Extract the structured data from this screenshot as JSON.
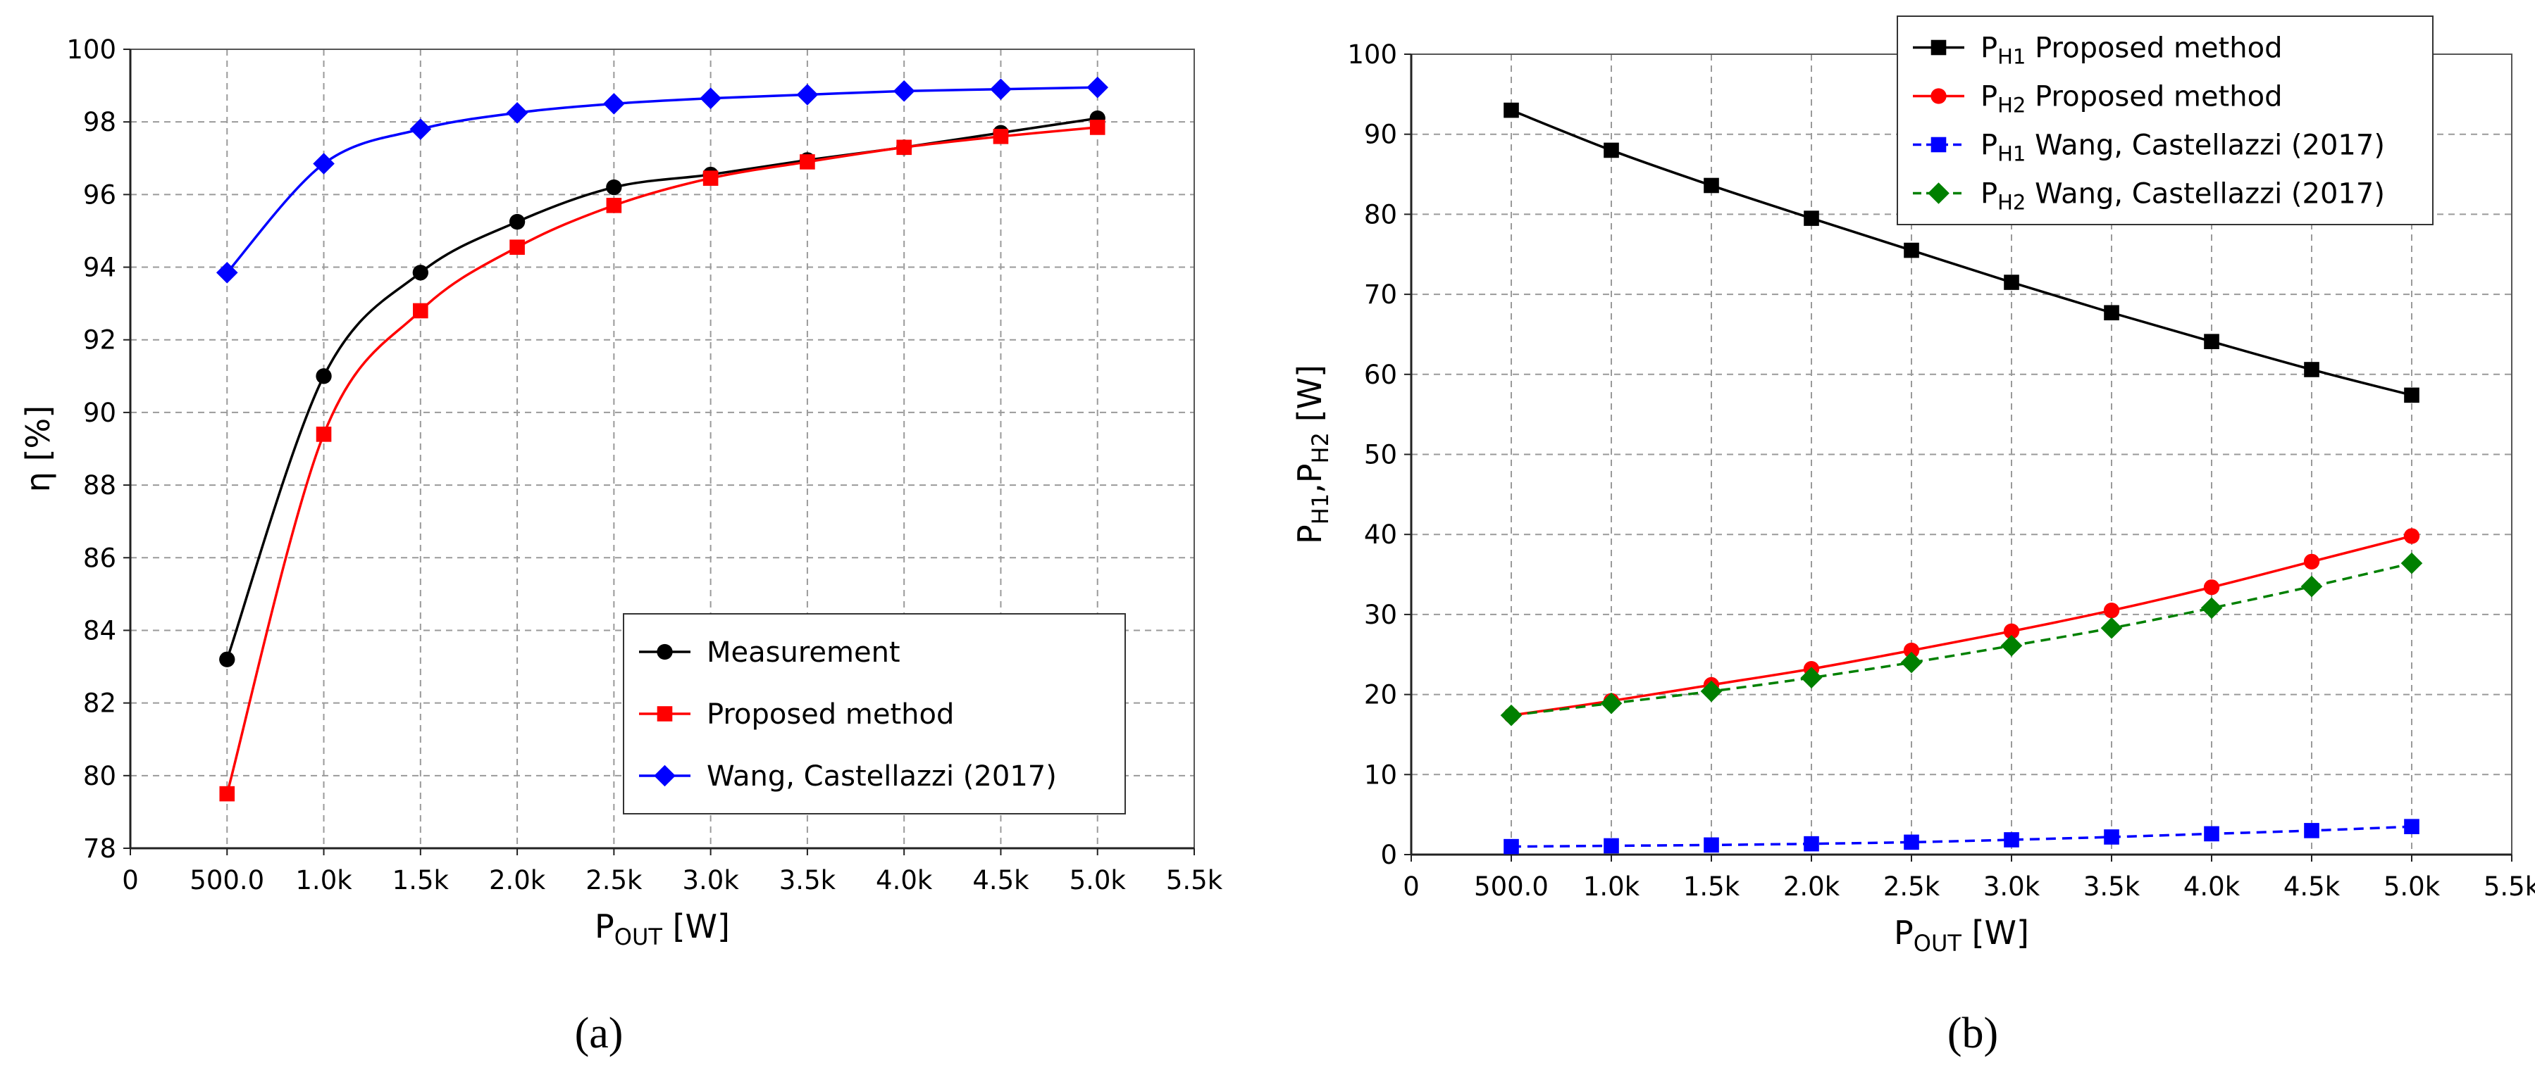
{
  "chart_data": [
    {
      "type": "line",
      "caption": "(a)",
      "ylabel": "η [%]",
      "xlabel": {
        "main": "P",
        "sub": "OUT",
        "unit": " [W]"
      },
      "xlim": [
        0,
        5500
      ],
      "ylim": [
        78,
        100
      ],
      "xticks": [
        0,
        500,
        1000,
        1500,
        2000,
        2500,
        3000,
        3500,
        4000,
        4500,
        5000,
        5500
      ],
      "xtick_labels": [
        "0",
        "500.0",
        "1.0k",
        "1.5k",
        "2.0k",
        "2.5k",
        "3.0k",
        "3.5k",
        "4.0k",
        "4.5k",
        "5.0k",
        "5.5k"
      ],
      "yticks": [
        78,
        80,
        82,
        84,
        86,
        88,
        90,
        92,
        94,
        96,
        98,
        100
      ],
      "ytick_labels": [
        "78",
        "80",
        "82",
        "84",
        "86",
        "88",
        "90",
        "92",
        "94",
        "96",
        "98",
        "100"
      ],
      "grid": true,
      "legend_position": "bottom-right",
      "series": [
        {
          "name": "Measurement",
          "color": "#000000",
          "marker": "circle",
          "dashed": false,
          "x": [
            500,
            1000,
            1500,
            2000,
            2500,
            3000,
            3500,
            4000,
            4500,
            5000
          ],
          "y": [
            83.2,
            91.0,
            93.85,
            95.25,
            96.2,
            96.55,
            96.95,
            97.3,
            97.7,
            98.1
          ]
        },
        {
          "name": "Proposed method",
          "color": "#ff0000",
          "marker": "square",
          "dashed": false,
          "x": [
            500,
            1000,
            1500,
            2000,
            2500,
            3000,
            3500,
            4000,
            4500,
            5000
          ],
          "y": [
            79.5,
            89.4,
            92.8,
            94.55,
            95.7,
            96.45,
            96.9,
            97.3,
            97.6,
            97.85
          ]
        },
        {
          "name": "Wang, Castellazzi (2017)",
          "color": "#0000ff",
          "marker": "diamond",
          "dashed": false,
          "x": [
            500,
            1000,
            1500,
            2000,
            2500,
            3000,
            3500,
            4000,
            4500,
            5000
          ],
          "y": [
            93.85,
            96.85,
            97.8,
            98.25,
            98.5,
            98.65,
            98.75,
            98.85,
            98.9,
            98.95
          ]
        }
      ]
    },
    {
      "type": "line",
      "caption": "(b)",
      "ylabel": {
        "p1": "P",
        "s1": "H1",
        "sep": ",",
        "p2": "P",
        "s2": "H2",
        "unit": " [W]"
      },
      "xlabel": {
        "main": "P",
        "sub": "OUT",
        "unit": " [W]"
      },
      "xlim": [
        0,
        5500
      ],
      "ylim": [
        0,
        100
      ],
      "xticks": [
        0,
        500,
        1000,
        1500,
        2000,
        2500,
        3000,
        3500,
        4000,
        4500,
        5000,
        5500
      ],
      "xtick_labels": [
        "0",
        "500.0",
        "1.0k",
        "1.5k",
        "2.0k",
        "2.5k",
        "3.0k",
        "3.5k",
        "4.0k",
        "4.5k",
        "5.0k",
        "5.5k"
      ],
      "yticks": [
        0,
        10,
        20,
        30,
        40,
        50,
        60,
        70,
        80,
        90,
        100
      ],
      "ytick_labels": [
        "0",
        "10",
        "20",
        "30",
        "40",
        "50",
        "60",
        "70",
        "80",
        "90",
        "100"
      ],
      "grid": true,
      "legend_position": "top-right",
      "series": [
        {
          "name": "Proposed method",
          "prefix": "P",
          "sub": "H1",
          "color": "#000000",
          "marker": "square",
          "dashed": false,
          "x": [
            500,
            1000,
            1500,
            2000,
            2500,
            3000,
            3500,
            4000,
            4500,
            5000
          ],
          "y": [
            93.0,
            88.0,
            83.6,
            79.5,
            75.5,
            71.5,
            67.7,
            64.1,
            60.6,
            57.4
          ]
        },
        {
          "name": "Proposed method",
          "prefix": "P",
          "sub": "H2",
          "color": "#ff0000",
          "marker": "circle",
          "dashed": false,
          "x": [
            500,
            1000,
            1500,
            2000,
            2500,
            3000,
            3500,
            4000,
            4500,
            5000
          ],
          "y": [
            17.4,
            19.2,
            21.2,
            23.2,
            25.5,
            27.9,
            30.5,
            33.4,
            36.6,
            39.8
          ]
        },
        {
          "name": "Wang, Castellazzi (2017)",
          "prefix": "P",
          "sub": "H1",
          "color": "#0000ff",
          "marker": "square",
          "dashed": true,
          "x": [
            500,
            1000,
            1500,
            2000,
            2500,
            3000,
            3500,
            4000,
            4500,
            5000
          ],
          "y": [
            1.0,
            1.1,
            1.2,
            1.35,
            1.55,
            1.85,
            2.2,
            2.6,
            3.0,
            3.5
          ]
        },
        {
          "name": "Wang, Castellazzi (2017)",
          "prefix": "P",
          "sub": "H2",
          "color": "#008000",
          "marker": "diamond",
          "dashed": true,
          "x": [
            500,
            1000,
            1500,
            2000,
            2500,
            3000,
            3500,
            4000,
            4500,
            5000
          ],
          "y": [
            17.4,
            18.9,
            20.4,
            22.1,
            24.0,
            26.1,
            28.3,
            30.8,
            33.5,
            36.4
          ]
        }
      ]
    }
  ]
}
